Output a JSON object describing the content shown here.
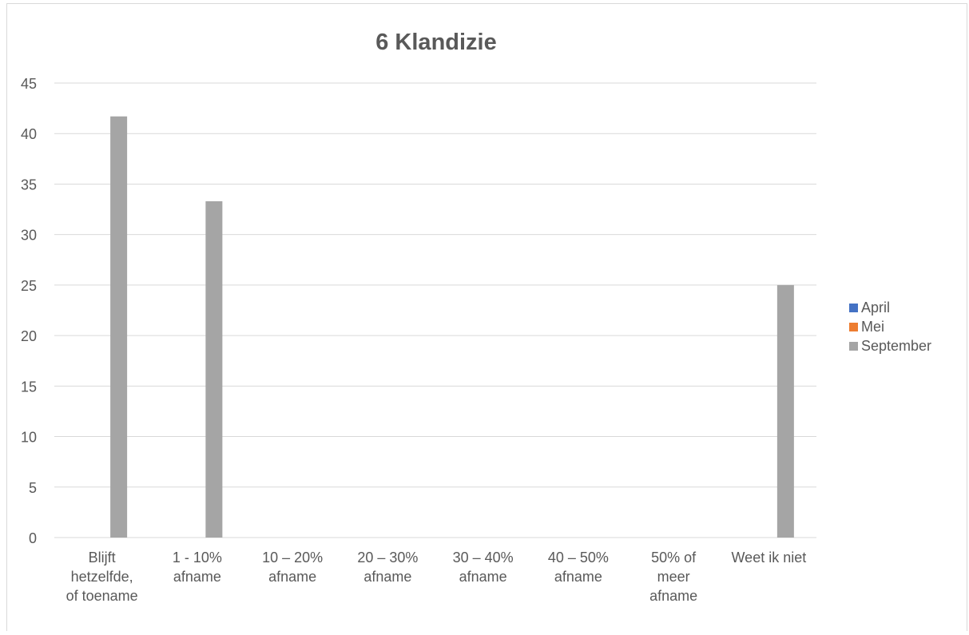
{
  "chart_data": {
    "type": "bar",
    "title": "6 Klandizie",
    "categories": [
      [
        "Blijft",
        "hetzelfde,",
        "of toename"
      ],
      [
        "1 - 10%",
        "afname"
      ],
      [
        "10 – 20%",
        "afname"
      ],
      [
        "20 – 30%",
        "afname"
      ],
      [
        "30 – 40%",
        "afname"
      ],
      [
        "40 – 50%",
        "afname"
      ],
      [
        "50% of",
        "meer",
        "afname"
      ],
      [
        "Weet ik niet"
      ]
    ],
    "series": [
      {
        "name": "April",
        "color": "#4472C4",
        "values": [
          0,
          0,
          0,
          0,
          0,
          0,
          0,
          0
        ]
      },
      {
        "name": "Mei",
        "color": "#ED7D31",
        "values": [
          0,
          0,
          0,
          0,
          0,
          0,
          0,
          0
        ]
      },
      {
        "name": "September",
        "color": "#A5A5A5",
        "values": [
          41.7,
          33.3,
          0,
          0,
          0,
          0,
          0,
          25
        ]
      }
    ],
    "ylim": [
      0,
      45
    ],
    "yticks": [
      0,
      5,
      10,
      15,
      20,
      25,
      30,
      35,
      40,
      45
    ],
    "grid": true,
    "legend": "right"
  }
}
